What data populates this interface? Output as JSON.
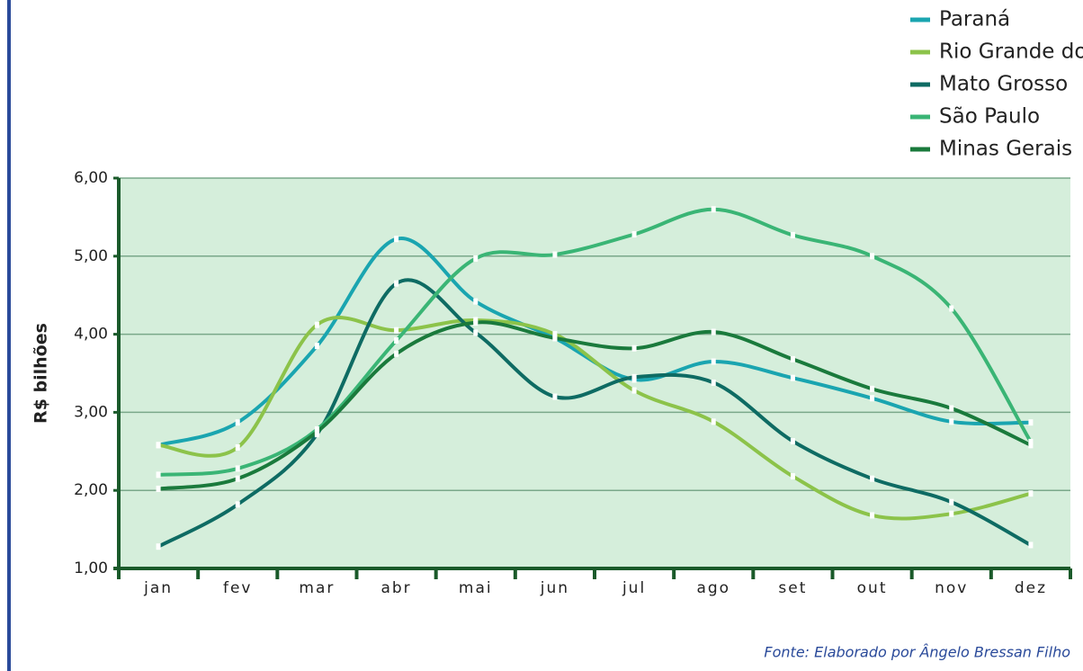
{
  "chart_data": {
    "type": "line",
    "y_label": "R$ bilhões",
    "source": "Fonte: Elaborado por Ângelo Bressan Filho",
    "categories": [
      "jan",
      "fev",
      "mar",
      "abr",
      "mai",
      "jun",
      "jul",
      "ago",
      "set",
      "out",
      "nov",
      "dez"
    ],
    "series": [
      {
        "name": "Paraná",
        "color": "#1aa5b0",
        "values": [
          2.58,
          2.87,
          3.85,
          5.22,
          4.42,
          3.95,
          3.42,
          3.65,
          3.44,
          3.18,
          2.88,
          2.87
        ]
      },
      {
        "name": "Rio Grande do Sul",
        "color": "#8cc34a",
        "values": [
          2.58,
          2.55,
          4.12,
          4.05,
          4.18,
          4.0,
          3.28,
          2.88,
          2.18,
          1.68,
          1.7,
          1.96
        ]
      },
      {
        "name": "Mato Grosso",
        "color": "#0e6b63",
        "values": [
          1.28,
          1.82,
          2.72,
          4.65,
          4.02,
          3.2,
          3.45,
          3.38,
          2.63,
          2.15,
          1.85,
          1.3
        ]
      },
      {
        "name": "São Paulo",
        "color": "#3ab575",
        "values": [
          2.2,
          2.28,
          2.78,
          3.92,
          4.97,
          5.02,
          5.28,
          5.6,
          5.27,
          5.0,
          4.33,
          2.62
        ]
      },
      {
        "name": "Minas Gerais",
        "color": "#1a7a3c",
        "values": [
          2.02,
          2.15,
          2.75,
          3.75,
          4.15,
          3.95,
          3.82,
          4.03,
          3.68,
          3.3,
          3.05,
          2.58
        ]
      }
    ],
    "ylim": [
      1,
      6
    ],
    "yticks": [
      {
        "value": 1,
        "label": "1,00"
      },
      {
        "value": 2,
        "label": "2,00"
      },
      {
        "value": 3,
        "label": "3,00"
      },
      {
        "value": 4,
        "label": "4,00"
      },
      {
        "value": 5,
        "label": "5,00"
      },
      {
        "value": 6,
        "label": "6,00"
      }
    ],
    "grid": true
  }
}
